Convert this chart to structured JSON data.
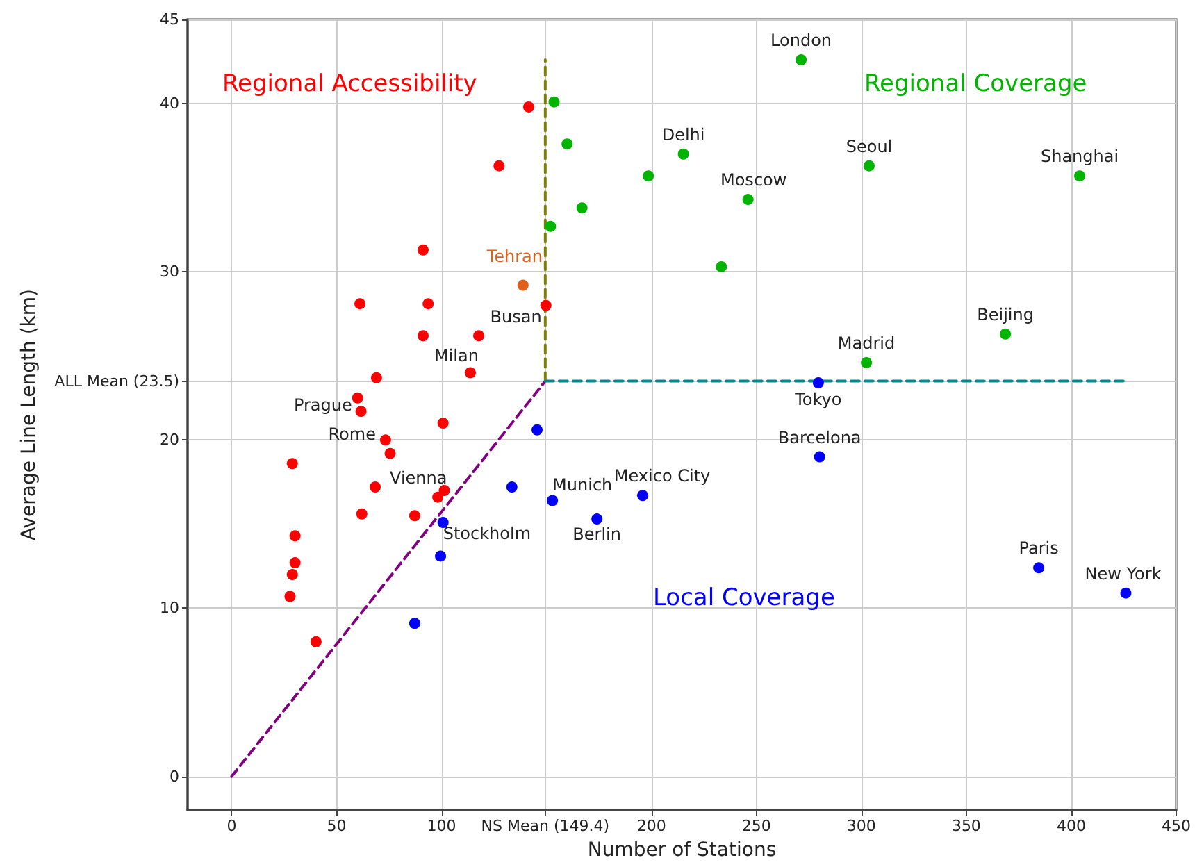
{
  "chart_data": {
    "type": "scatter",
    "xlabel": "Number of Stations",
    "ylabel": "Average Line Length (km)",
    "xlim": [
      -21,
      450
    ],
    "ylim": [
      -2,
      45
    ],
    "xticks": [
      0,
      50,
      100,
      {
        "value": 149.4,
        "label": "NS Mean (149.4)"
      },
      200,
      250,
      300,
      350,
      400,
      450
    ],
    "yticks": [
      0,
      10,
      20,
      {
        "value": 23.5,
        "label": "ALL Mean (23.5)"
      },
      30,
      40,
      45
    ],
    "grid": true,
    "marker": "circle",
    "series": [
      {
        "name": "Regional Accessibility",
        "color": "#ff0000",
        "x": [
          141.5,
          127.4,
          91.2,
          61.1,
          93.6,
          149.7,
          91.2,
          117.7,
          113.7,
          69.0,
          60.0,
          61.6,
          100.7,
          73.3,
          75.5,
          28.9,
          68.4,
          101.3,
          98.2,
          62.0,
          87.2,
          30.2,
          30.2,
          28.9,
          27.8,
          40.2
        ],
        "values": [
          39.8,
          36.3,
          31.3,
          28.1,
          28.1,
          28.0,
          26.2,
          26.2,
          24.0,
          23.7,
          22.5,
          21.7,
          21.0,
          20.0,
          19.2,
          18.6,
          17.2,
          17.0,
          16.6,
          15.6,
          15.5,
          14.3,
          12.7,
          12.0,
          10.7,
          8.0
        ]
      },
      {
        "name": "Regional Coverage",
        "color": "#00b400",
        "x": [
          153.6,
          159.8,
          215.2,
          198.5,
          166.9,
          246.0,
          151.9,
          233.3,
          271.3,
          303.7,
          404.0,
          368.6,
          302.4
        ],
        "values": [
          40.1,
          37.6,
          37.0,
          35.7,
          33.8,
          34.3,
          32.7,
          30.3,
          42.6,
          36.3,
          35.7,
          26.3,
          24.6
        ]
      },
      {
        "name": "Local Coverage",
        "color": "#0000ff",
        "x": [
          145.5,
          133.5,
          152.8,
          100.7,
          99.5,
          87.2,
          174.0,
          195.8,
          280.1,
          384.5,
          426.0,
          279.5
        ],
        "values": [
          20.6,
          17.2,
          16.4,
          15.1,
          13.1,
          9.1,
          15.3,
          16.7,
          19.0,
          12.4,
          10.9,
          23.4
        ]
      },
      {
        "name": "Tehran",
        "color": "#e0601a",
        "x": [
          138.8
        ],
        "values": [
          29.2
        ]
      },
      {
        "type": "line",
        "color": "#800080",
        "line_style": "dashed",
        "marker": "none",
        "x": [
          0,
          149.4
        ],
        "values": [
          0,
          23.5
        ]
      },
      {
        "type": "line",
        "color": "#808000",
        "line_style": "dashed",
        "marker": "none",
        "x": [
          149.4,
          149.4
        ],
        "values": [
          23.5,
          42.6
        ]
      },
      {
        "type": "line",
        "color": "#008b8b",
        "line_style": "dashed",
        "marker": "none",
        "x": [
          149.4,
          425
        ],
        "values": [
          23.5,
          23.5
        ]
      }
    ],
    "annotations": [
      {
        "text": "London",
        "x": 271.3,
        "y": 42.6
      },
      {
        "text": "Delhi",
        "x": 215.2,
        "y": 37.0
      },
      {
        "text": "Seoul",
        "x": 303.7,
        "y": 36.3
      },
      {
        "text": "Shanghai",
        "x": 404.0,
        "y": 35.7
      },
      {
        "text": "Moscow",
        "x": 246.0,
        "y": 34.3
      },
      {
        "text": "Beijing",
        "x": 368.6,
        "y": 26.3
      },
      {
        "text": "Madrid",
        "x": 302.4,
        "y": 24.6
      },
      {
        "text": "Barcelona",
        "x": 280.1,
        "y": 19.0
      },
      {
        "text": "Paris",
        "x": 384.5,
        "y": 12.4
      },
      {
        "text": "New York",
        "x": 426.0,
        "y": 10.9
      },
      {
        "text": "Mexico City",
        "x": 195.8,
        "y": 16.7
      },
      {
        "text": "Tokyo",
        "x": 279.5,
        "y": 23.4
      },
      {
        "text": "Berlin",
        "x": 174.0,
        "y": 15.3
      },
      {
        "text": "Stockholm",
        "x": 100.7,
        "y": 15.1
      },
      {
        "text": "Munich",
        "x": 152.8,
        "y": 16.4
      },
      {
        "text": "Vienna",
        "x": 101.3,
        "y": 17.0
      },
      {
        "text": "Milan",
        "x": 113.7,
        "y": 24.0
      },
      {
        "text": "Prague",
        "x": 60.0,
        "y": 22.5
      },
      {
        "text": "Rome",
        "x": 73.3,
        "y": 20.0
      },
      {
        "text": "Busan",
        "x": 149.7,
        "y": 28.0
      }
    ]
  }
}
